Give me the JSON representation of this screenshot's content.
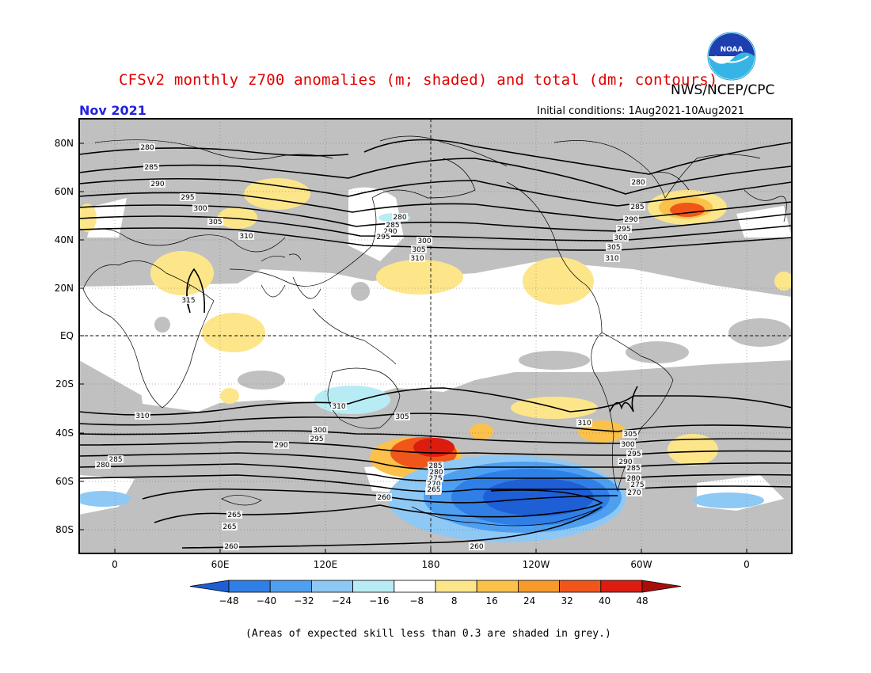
{
  "title": "CFSv2 monthly z700 anomalies (m; shaded) and total (dm; contours)",
  "agency": "NWS/NCEP/CPC",
  "logo_text": "NOAA",
  "month": "Nov 2021",
  "initial_conditions": "Initial conditions: 1Aug2021-10Aug2021",
  "map": {
    "lat_labels": [
      "80N",
      "60N",
      "40N",
      "20N",
      "EQ",
      "20S",
      "40S",
      "60S",
      "80S"
    ],
    "lon_labels": [
      "0",
      "60E",
      "120E",
      "180",
      "120W",
      "60W",
      "0"
    ],
    "contour_labels": [
      "280",
      "285",
      "290",
      "295",
      "300",
      "305",
      "310",
      "315",
      "280",
      "285",
      "290",
      "295",
      "300",
      "305",
      "310",
      "280",
      "285",
      "290",
      "295",
      "300",
      "305",
      "310",
      "310",
      "310",
      "305",
      "300",
      "295",
      "290",
      "285",
      "280",
      "310",
      "305",
      "300",
      "295",
      "290",
      "285",
      "280",
      "275",
      "270",
      "265",
      "260",
      "265",
      "265",
      "260",
      "260",
      "285",
      "280",
      "275",
      "270",
      "265"
    ],
    "skill_note": "(Areas of expected skill less than 0.3 are shaded in grey.)"
  },
  "colorbar": {
    "ticks": [
      "-48",
      "-40",
      "-32",
      "-24",
      "-16",
      "-8",
      "8",
      "16",
      "24",
      "32",
      "40",
      "48"
    ],
    "colors": [
      "#1e5fd6",
      "#2f7fe6",
      "#4f9ff0",
      "#8ec8f5",
      "#b8ecf5",
      "#ffffff",
      "#fde68a",
      "#fbc14a",
      "#f79a2a",
      "#f0561a",
      "#dd1c10",
      "#a80f0a"
    ]
  }
}
